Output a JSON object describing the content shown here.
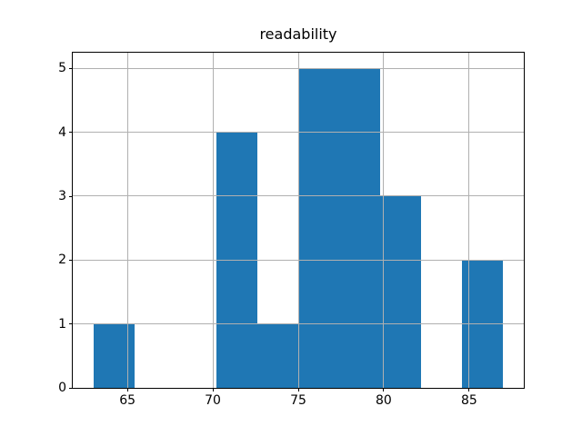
{
  "title": "readability",
  "chart_data": {
    "type": "histogram",
    "title": "readability",
    "xlabel": "",
    "ylabel": "",
    "bin_edges": [
      63.0,
      65.4,
      67.8,
      70.2,
      72.6,
      75.0,
      77.4,
      79.8,
      82.2,
      84.6,
      87.0
    ],
    "counts": [
      1,
      0,
      0,
      4,
      1,
      5,
      5,
      3,
      0,
      2
    ],
    "xticks": [
      65,
      70,
      75,
      80,
      85
    ],
    "yticks": [
      0,
      1,
      2,
      3,
      4,
      5
    ],
    "xlim": [
      61.8,
      88.2
    ],
    "ylim": [
      0,
      5.25
    ],
    "grid": true,
    "legend": false,
    "bar_color": "#1f77b4",
    "grid_color": "#b0b0b0",
    "spine_color": "#000000",
    "background_color": "#ffffff"
  }
}
